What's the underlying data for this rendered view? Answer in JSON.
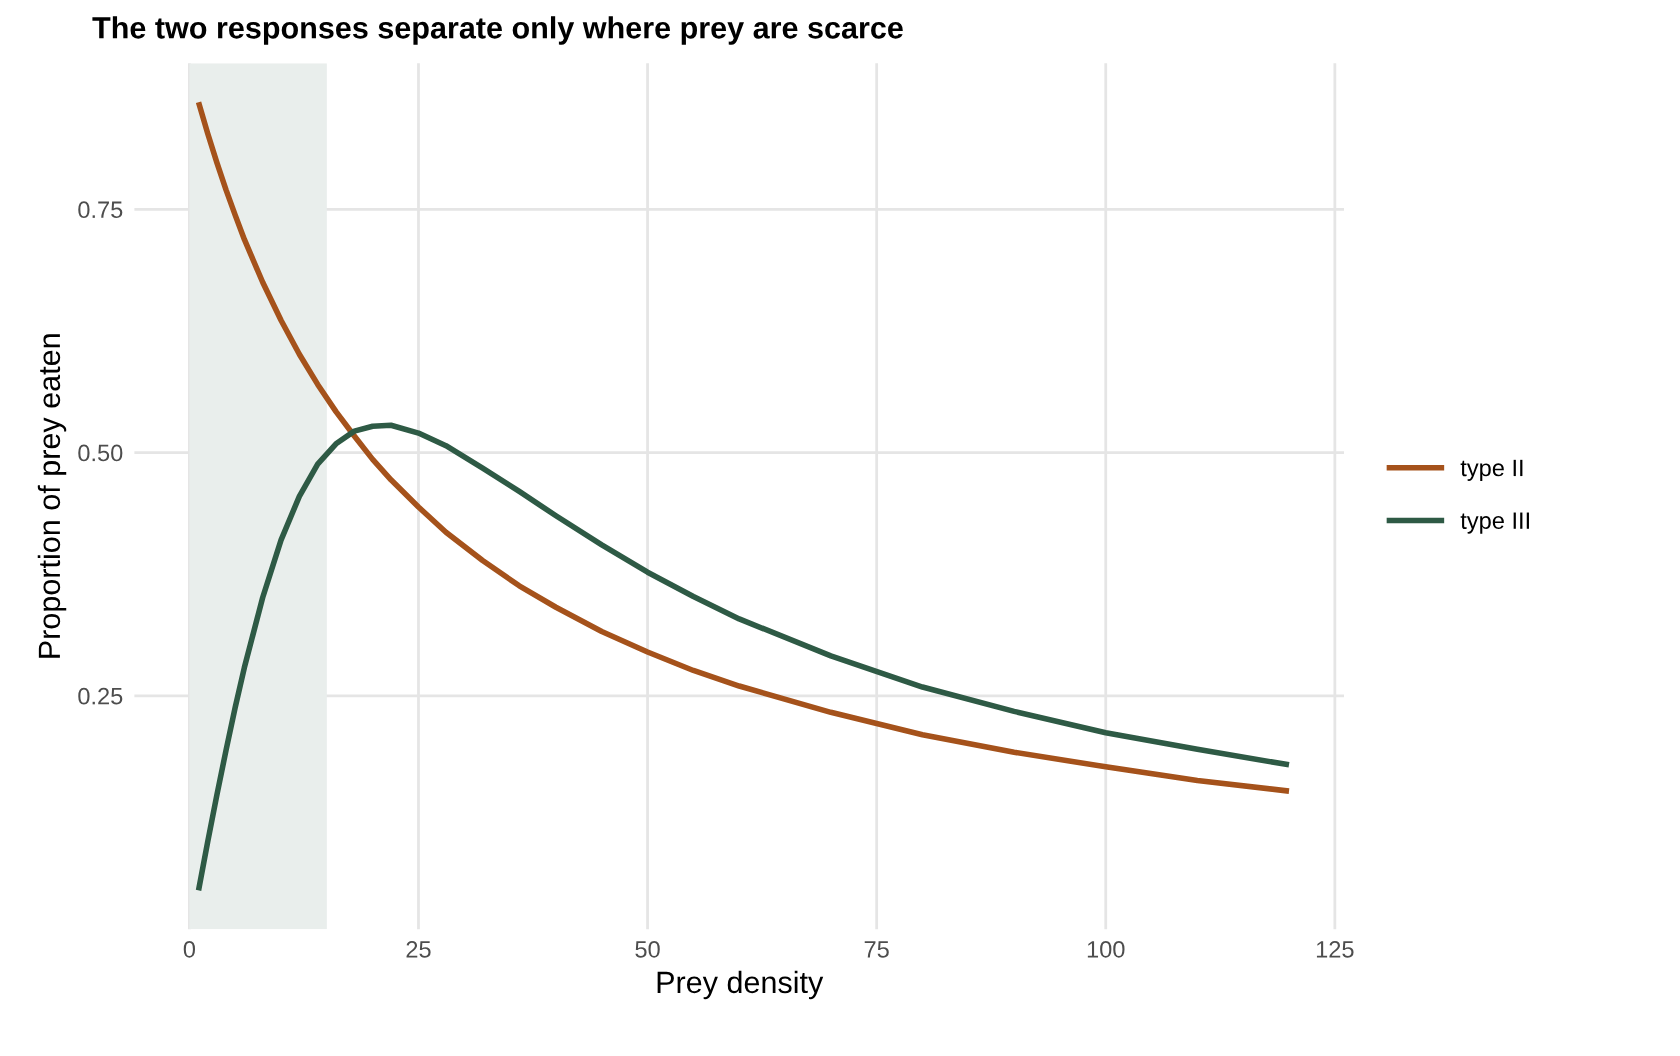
{
  "chart_data": {
    "type": "line",
    "title": "The two responses separate only where prey are scarce",
    "xlabel": "Prey density",
    "ylabel": "Proportion of prey eaten",
    "x": [
      1,
      2,
      3,
      4,
      5,
      6,
      8,
      10,
      12,
      14,
      16,
      18,
      20,
      22,
      25,
      28,
      32,
      36,
      40,
      45,
      50,
      55,
      60,
      70,
      80,
      90,
      100,
      110,
      120
    ],
    "series": [
      {
        "name": "type II",
        "color": "#a5521b",
        "values": [
          0.86,
          0.828,
          0.798,
          0.77,
          0.744,
          0.719,
          0.675,
          0.636,
          0.601,
          0.57,
          0.542,
          0.517,
          0.493,
          0.472,
          0.444,
          0.418,
          0.389,
          0.363,
          0.341,
          0.316,
          0.295,
          0.276,
          0.26,
          0.233,
          0.21,
          0.192,
          0.177,
          0.163,
          0.152
        ]
      },
      {
        "name": "type III",
        "color": "#2e5a45",
        "values": [
          0.05,
          0.1,
          0.148,
          0.194,
          0.238,
          0.279,
          0.351,
          0.41,
          0.455,
          0.488,
          0.509,
          0.522,
          0.527,
          0.528,
          0.52,
          0.507,
          0.484,
          0.46,
          0.435,
          0.405,
          0.377,
          0.352,
          0.329,
          0.291,
          0.259,
          0.234,
          0.212,
          0.195,
          0.179
        ]
      }
    ],
    "bands": [
      {
        "axis": "x",
        "from": 0,
        "to": 15,
        "color": "#e9eeec"
      }
    ],
    "xlim": [
      -6,
      126
    ],
    "xticks": [
      0,
      25,
      50,
      75,
      100,
      125
    ],
    "ylim": [
      0.01,
      0.9
    ],
    "yticks": [
      0.25,
      {
        "value": 0.5,
        "label": "0.50"
      },
      0.75
    ],
    "grid": true,
    "legend": "right",
    "line_style": "solid",
    "marker": "none"
  }
}
